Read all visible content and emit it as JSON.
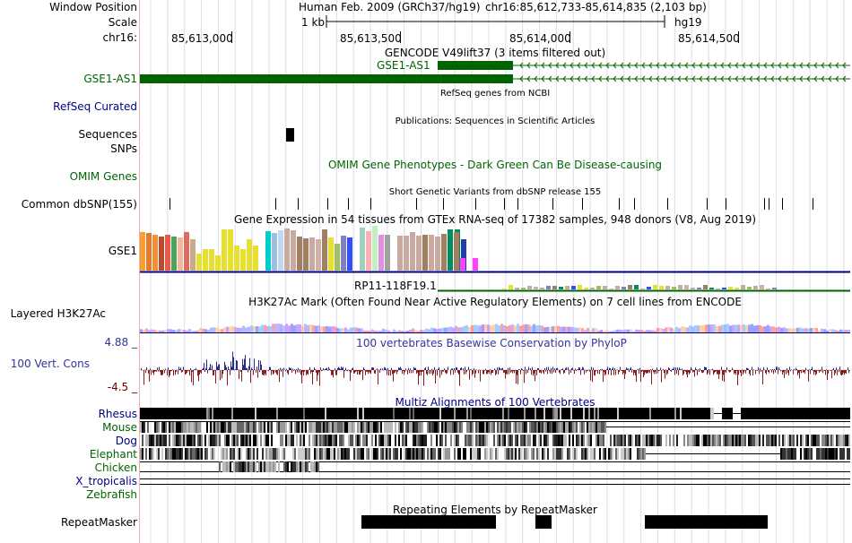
{
  "side_labels": {
    "window_position": "Window Position",
    "scale": "Scale",
    "chrom": "chr16:",
    "gse1_as1": "GSE1-AS1",
    "refseq_curated": "RefSeq Curated",
    "sequences": "Sequences",
    "snps": "SNPs",
    "omim_genes": "OMIM Genes",
    "common_dbsnp": "Common dbSNP(155)",
    "gse1": "GSE1",
    "layered_h3k27ac": "Layered H3K27Ac",
    "cons_max": "4.88 _",
    "vert_cons": "100 Vert. Cons",
    "cons_min": "-4.5 _",
    "species": [
      "Rhesus",
      "Mouse",
      "Dog",
      "Elephant",
      "Chicken",
      "X_tropicalis",
      "Zebrafish"
    ],
    "repeatmasker": "RepeatMasker"
  },
  "ruler": {
    "assembly": "Human Feb. 2009 (GRCh37/hg19)",
    "position": "chr16:85,612,733-85,614,835 (2,103 bp)",
    "scale_label": "1 kb",
    "db": "hg19",
    "ticks": [
      "85,613,000",
      "85,613,500",
      "85,614,000",
      "85,614,500"
    ]
  },
  "tracks": {
    "gencode_title": "GENCODE V49lift37 (3 items filtered out)",
    "gse1_as1_gene_label": "GSE1-AS1",
    "refseq_title": "RefSeq genes from NCBI",
    "publications_title": "Publications: Sequences in Scientific Articles",
    "omim_title": "OMIM Gene Phenotypes - Dark Green Can Be Disease-causing",
    "dbsnp_title": "Short Genetic Variants from dbSNP release 155",
    "gtex_title": "Gene Expression in 54 tissues from GTEx RNA-seq of 17382 samples, 948 donors (V8, Aug 2019)",
    "rp11_label": "RP11-118F19.1",
    "h3k27ac_title": "H3K27Ac Mark (Often Found Near Active Regulatory Elements) on 7 cell lines from ENCODE",
    "phylop_title": "100 vertebrates Basewise Conservation by PhyloP",
    "multiz_title": "Multiz Alignments of 100 Vertebrates",
    "repeatmasker_title": "Repeating Elements by RepeatMasker"
  },
  "colors": {
    "gene_green": "#006400",
    "navy": "#000080",
    "phylop_pos": "#2a2a8c",
    "phylop_neg": "#8b1a1a",
    "grid": "#d8d8f0",
    "left_margin_line": "#f0b0b0"
  }
}
